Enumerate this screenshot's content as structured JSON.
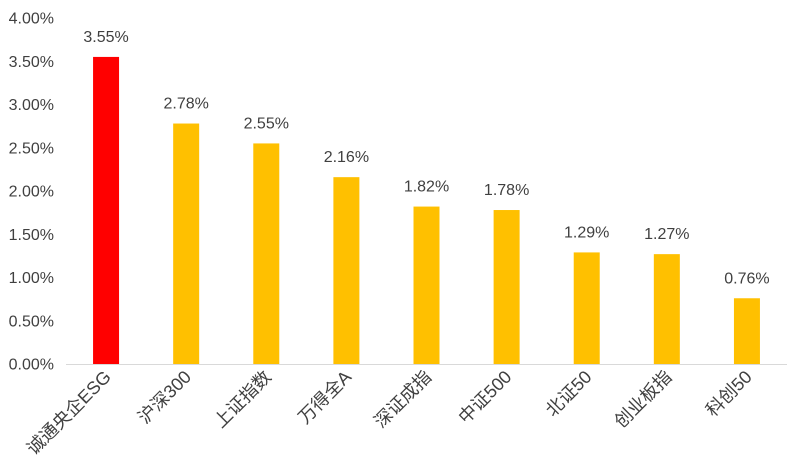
{
  "chart_data": {
    "type": "bar",
    "categories": [
      "诚通央企ESG",
      "沪深300",
      "上证指数",
      "万得全A",
      "深证成指",
      "中证500",
      "北证50",
      "创业板指",
      "科创50"
    ],
    "values": [
      3.55,
      2.78,
      2.55,
      2.16,
      1.82,
      1.78,
      1.29,
      1.27,
      0.76
    ],
    "data_labels": [
      "3.55%",
      "2.78%",
      "2.55%",
      "2.16%",
      "1.82%",
      "1.78%",
      "1.29%",
      "1.27%",
      "0.76%"
    ],
    "title": "",
    "xlabel": "",
    "ylabel": "",
    "ylim": [
      0,
      4.0
    ],
    "yticks": [
      "0.00%",
      "0.50%",
      "1.00%",
      "1.50%",
      "2.00%",
      "2.50%",
      "3.00%",
      "3.50%",
      "4.00%"
    ],
    "grid": false,
    "legend": "none",
    "colors": {
      "highlight": "#FF0000",
      "default": "#FFC000",
      "axis": "#D9D9D9",
      "text": "#404040"
    },
    "highlight_index": 0
  }
}
